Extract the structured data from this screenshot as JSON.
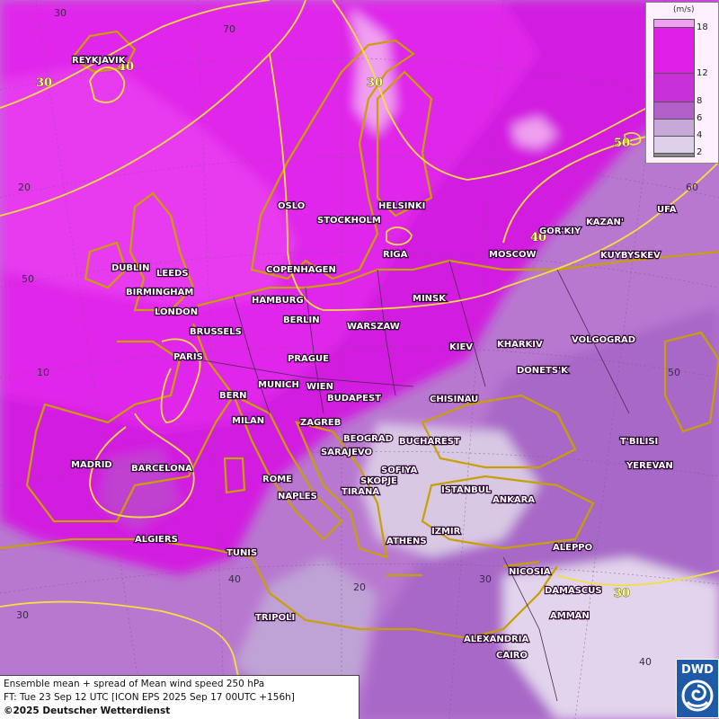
{
  "unit_label": "(m/s)",
  "legend": {
    "ticks": [
      "18",
      "12",
      "8",
      "6",
      "4",
      "2"
    ],
    "colors": [
      "#f0a0f0",
      "#e020e8",
      "#c830d8",
      "#b060c8",
      "#c8a8d8",
      "#ddd0e8",
      "#888888"
    ]
  },
  "caption": {
    "line1": "Ensemble mean + spread of Mean wind speed 250 hPa",
    "line2": "FT: Tue 23 Sep 12 UTC [ICON EPS 2025 Sep 17 00UTC +156h]",
    "line3": "©2025 Deutscher Wetterdienst"
  },
  "logo": {
    "text": "DWD"
  },
  "cities": [
    "REYKJAVIK",
    "OSLO",
    "HELSINKI",
    "STOCKHOLM",
    "RIGA",
    "GOR'KIY",
    "KAZAN'",
    "UFA",
    "DUBLIN",
    "LEEDS",
    "BIRMINGHAM",
    "LONDON",
    "COPENHAGEN",
    "HAMBURG",
    "BERLIN",
    "MINSK",
    "MOSCOW",
    "KUYBYSKEV",
    "BRUSSELS",
    "WARSZAW",
    "KIEV",
    "KHARKIV",
    "VOLGOGRAD",
    "PARIS",
    "PRAGUE",
    "DONETS'K",
    "BERN",
    "MUNICH",
    "WIEN",
    "BUDAPEST",
    "CHISINAU",
    "MILAN",
    "ZAGREB",
    "BEOGRAD",
    "BUCHAREST",
    "T'BILISI",
    "MADRID",
    "BARCELONA",
    "SARAJEVO",
    "SOFIYA",
    "YEREVAN",
    "ROME",
    "SKOPJE",
    "NAPLES",
    "TIRANA",
    "ISTANBUL",
    "ANKARA",
    "ALGIERS",
    "ATHENS",
    "IZMIR",
    "TUNIS",
    "ALEPPO",
    "NICOSIA",
    "DAMASCUS",
    "AMMAN",
    "TRIPOLI",
    "ALEXANDRIA",
    "CAIRO"
  ],
  "grid_labels": [
    "30",
    "70",
    "20",
    "60",
    "50",
    "10",
    "50",
    "40",
    "20",
    "30",
    "30",
    "40"
  ],
  "contour_labels": [
    "40",
    "30",
    "30",
    "50",
    "40",
    "30"
  ]
}
